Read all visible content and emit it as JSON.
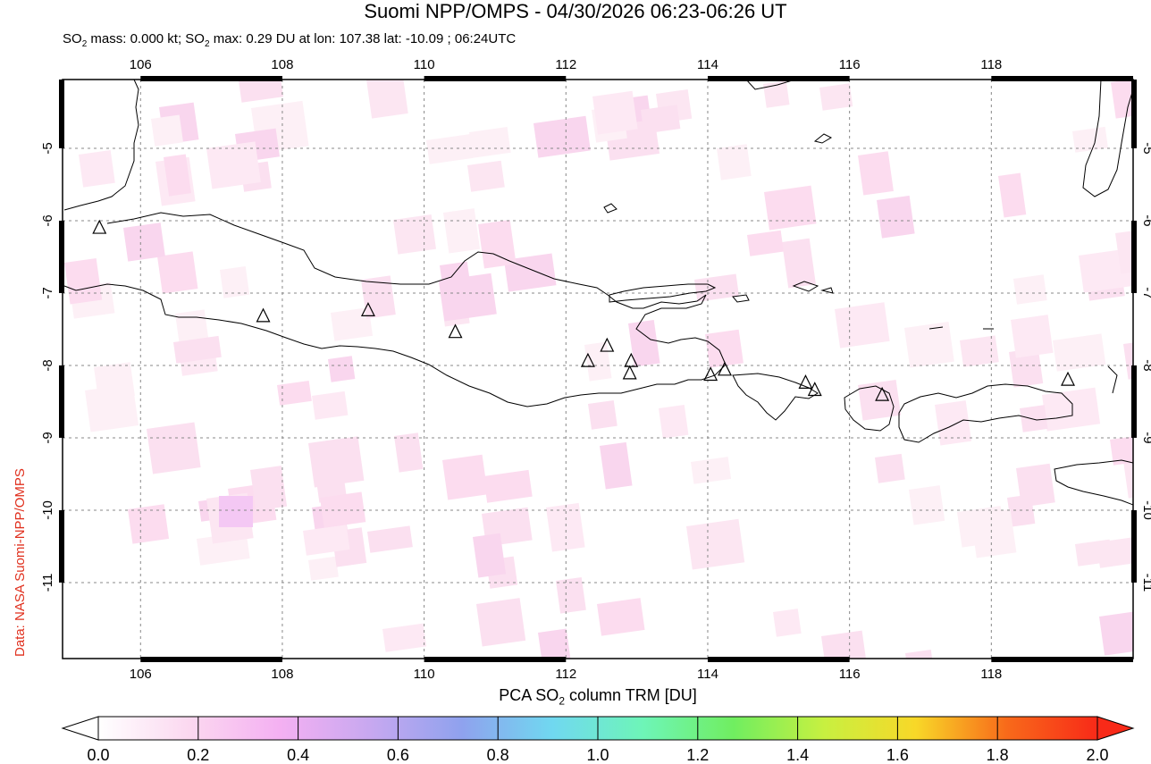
{
  "header": {
    "title": "Suomi NPP/OMPS - 04/30/2026 06:23-06:26 UT",
    "subtitle_prefix": "SO",
    "subtitle_mid": " mass: 0.000 kt; SO",
    "subtitle_rest": " max: 0.29 DU at lon: 107.38 lat: -10.09 ; 06:24UTC",
    "sub_2": "2"
  },
  "credit": "Data: NASA Suomi-NPP/OMPS",
  "map": {
    "lon_range": [
      104.9,
      120.0
    ],
    "lat_range": [
      -12.05,
      -4.05
    ],
    "lon_ticks": [
      "106",
      "108",
      "110",
      "112",
      "114",
      "116",
      "118"
    ],
    "lat_ticks": [
      "-5",
      "-6",
      "-7",
      "-8",
      "-9",
      "-10",
      "-11"
    ],
    "volcanoes": [
      {
        "lon": 105.42,
        "lat": -6.1
      },
      {
        "lon": 107.73,
        "lat": -7.32
      },
      {
        "lon": 109.21,
        "lat": -7.24
      },
      {
        "lon": 110.44,
        "lat": -7.54
      },
      {
        "lon": 112.31,
        "lat": -7.94
      },
      {
        "lon": 112.58,
        "lat": -7.73
      },
      {
        "lon": 112.92,
        "lat": -7.94
      },
      {
        "lon": 112.9,
        "lat": -8.11
      },
      {
        "lon": 114.04,
        "lat": -8.13
      },
      {
        "lon": 114.24,
        "lat": -8.06
      },
      {
        "lon": 115.38,
        "lat": -8.24
      },
      {
        "lon": 115.51,
        "lat": -8.34
      },
      {
        "lon": 116.46,
        "lat": -8.41
      },
      {
        "lon": 119.08,
        "lat": -8.2
      }
    ]
  },
  "colorbar": {
    "title_prefix": "PCA SO",
    "title_suffix": " column TRM [DU]",
    "sub": "2",
    "ticks": [
      "0.0",
      "0.2",
      "0.4",
      "0.6",
      "0.8",
      "1.0",
      "1.2",
      "1.4",
      "1.6",
      "1.8",
      "2.0"
    ],
    "colors": [
      "#ffffff",
      "#fbd8f0",
      "#f4b0f2",
      "#c7a8f0",
      "#8fa2ee",
      "#70d8f0",
      "#6ef5b8",
      "#70ee60",
      "#c8f040",
      "#f8d828",
      "#f86a1a",
      "#f82a18"
    ]
  }
}
